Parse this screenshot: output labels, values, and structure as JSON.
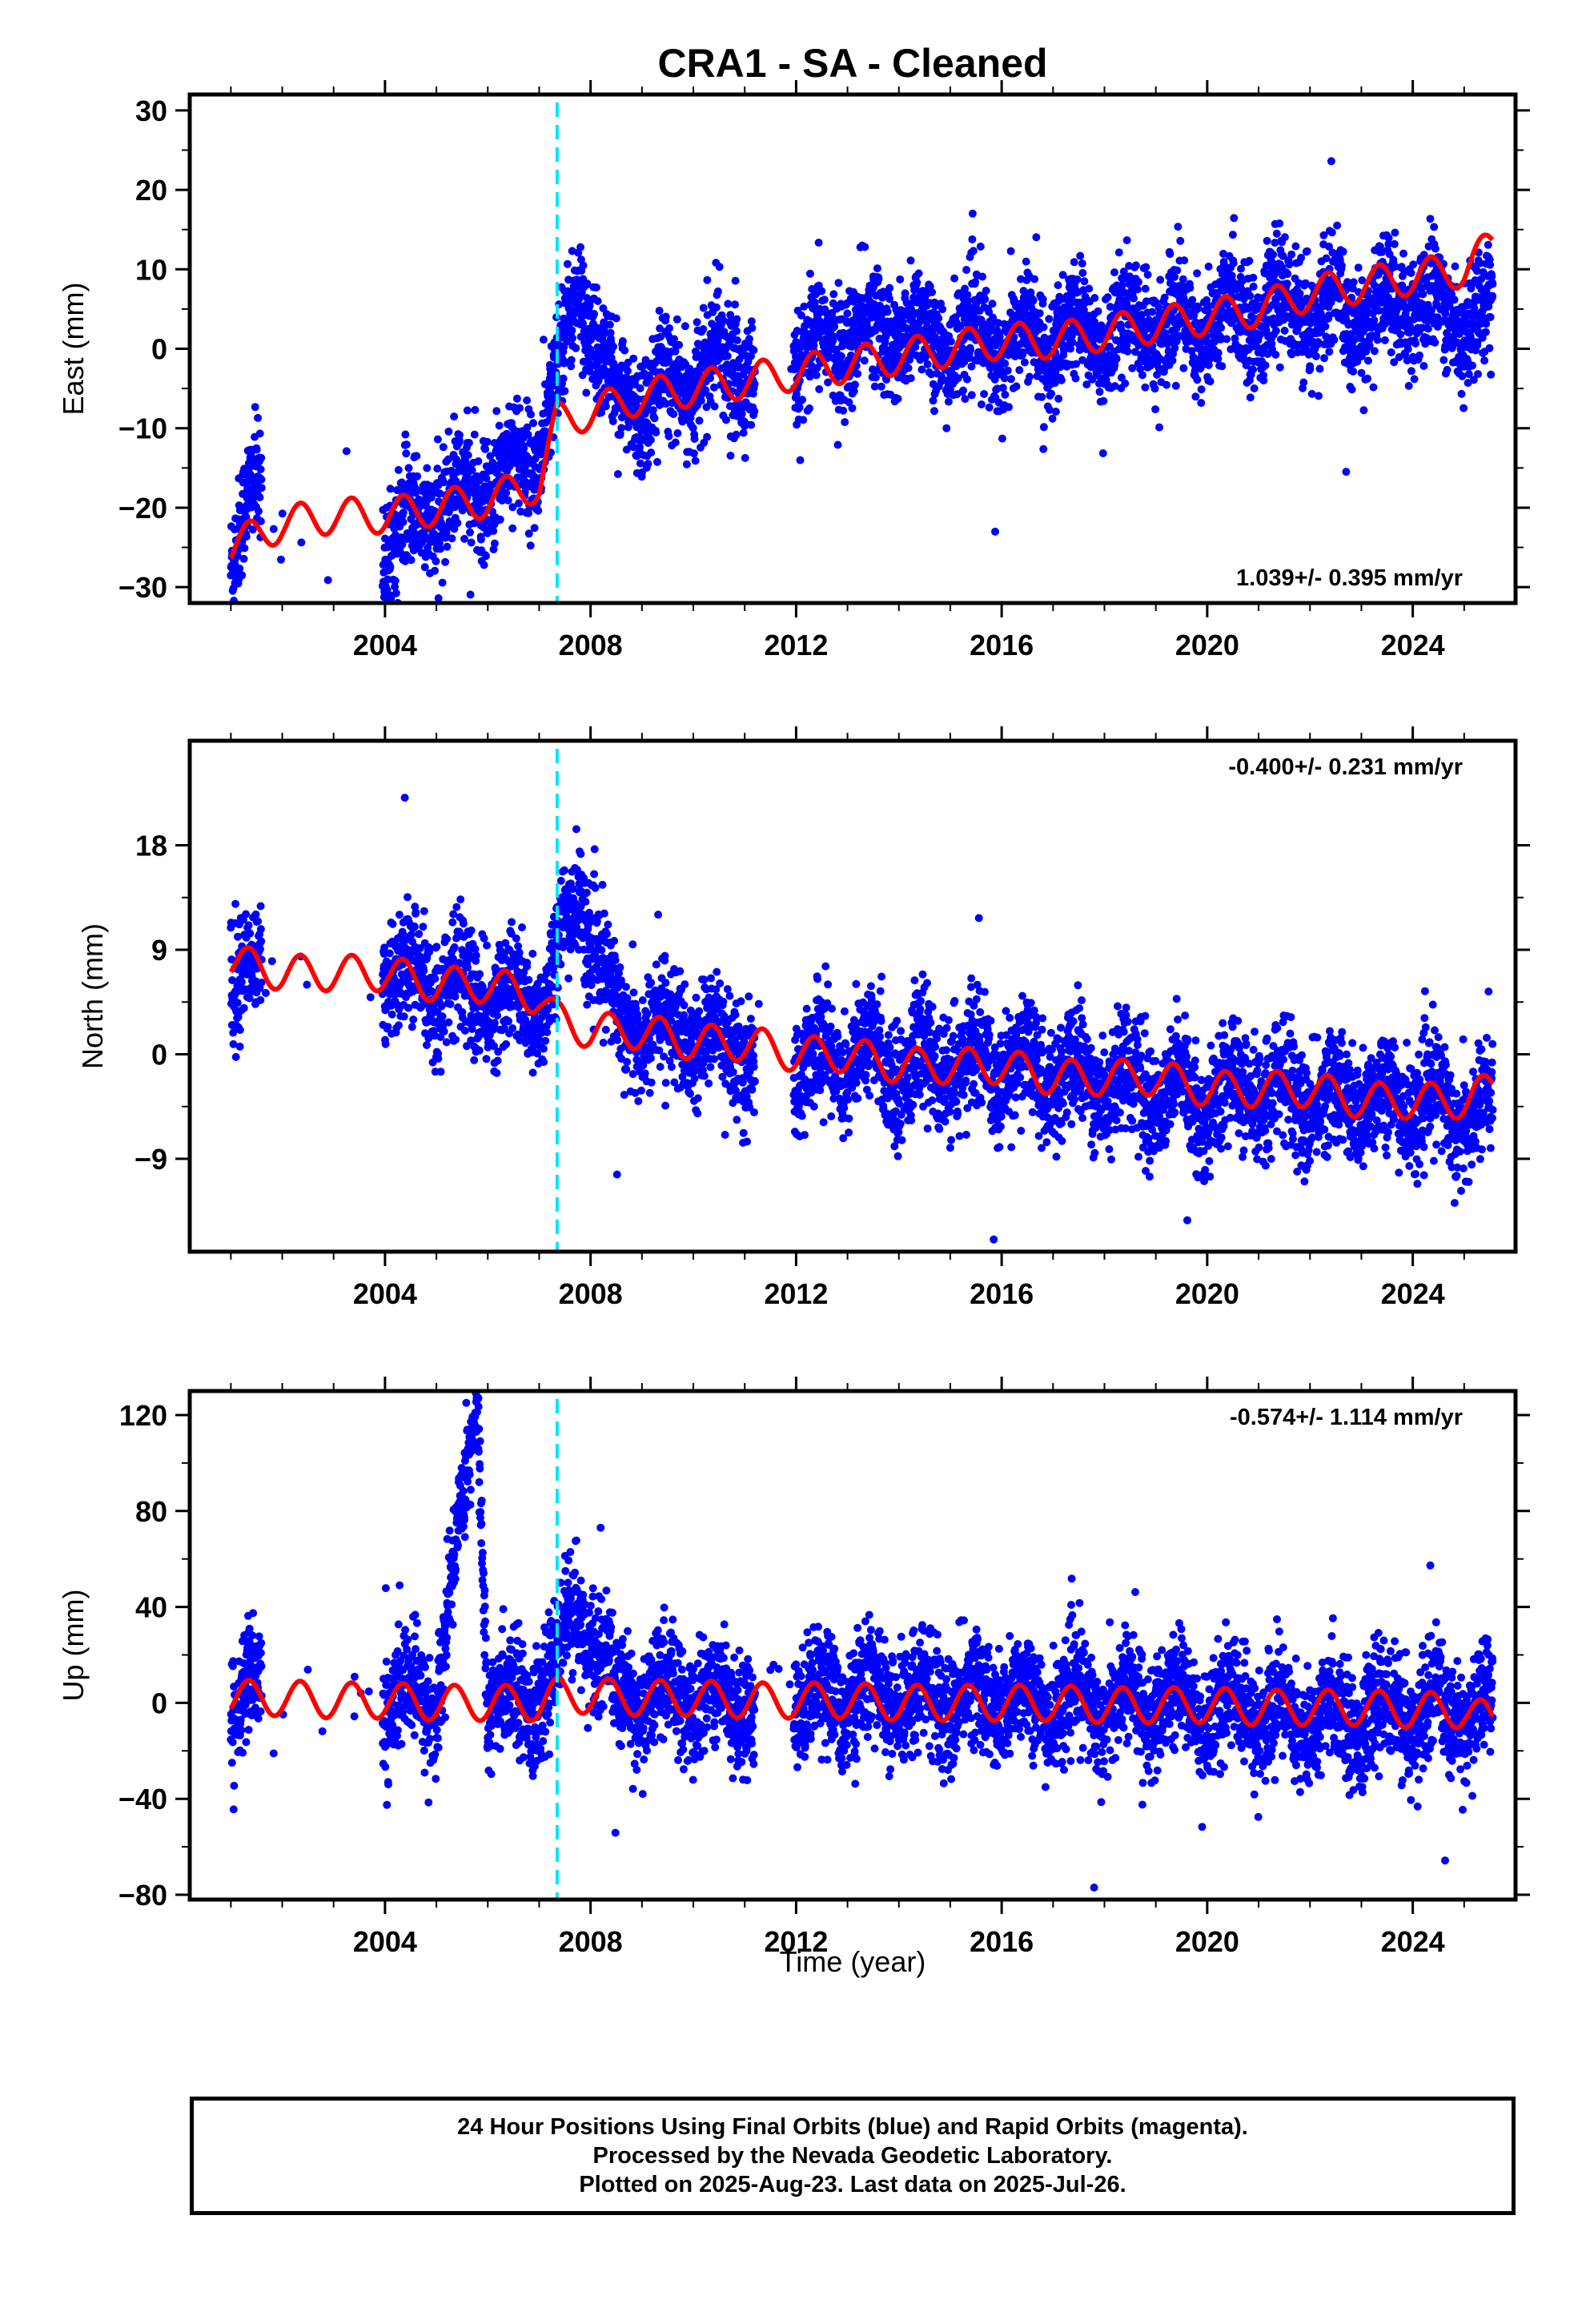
{
  "title": "CRA1  - SA - Cleaned",
  "xlabel": "Time (year)",
  "colors": {
    "final_orbits": "#0000ff",
    "model_fit": "#ff0000",
    "offset_line": "#00e5ff",
    "frame": "#000000"
  },
  "footer": {
    "line1": "24 Hour Positions Using Final Orbits (blue) and Rapid Orbits (magenta).",
    "line2": "Processed by the Nevada Geodetic Laboratory.",
    "line3": "Plotted on 2025-Aug-23. Last data on 2025-Jul-26."
  },
  "chart_data": [
    {
      "type": "scatter",
      "ylabel": "East (mm)",
      "rate": "1.039+/- 0.395 mm/yr",
      "rate_position": "bottom-right",
      "xlim": [
        2000.2,
        2026.0
      ],
      "ylim": [
        -32,
        32
      ],
      "xticks": [
        2004,
        2008,
        2012,
        2016,
        2020,
        2024
      ],
      "xtick_labels": [
        "2004",
        "2008",
        "2012",
        "2016",
        "2020",
        "2024"
      ],
      "yticks": [
        -30,
        -20,
        -10,
        0,
        10,
        20,
        30
      ],
      "ytick_labels": [
        "−30",
        "−20",
        "−10",
        "0",
        "10",
        "20",
        "30"
      ],
      "offset_epoch": 2007.35,
      "series": [
        {
          "style": "points",
          "x": [
            2001.0,
            2001.4,
            2004.0,
            2004.5,
            2005.0,
            2005.5,
            2006.0,
            2006.5,
            2007.0,
            2007.8,
            2008.5,
            2009.5,
            2010.5,
            2012.0,
            2013.0,
            2014.0,
            2015.0,
            2016.0,
            2017.0,
            2018.0,
            2019.0,
            2020.0,
            2021.0,
            2022.0,
            2023.0,
            2024.0,
            2025.0
          ],
          "y": [
            -25,
            -19,
            -25,
            -22,
            -20,
            -19,
            -17,
            -15,
            -13,
            8,
            -7,
            -5,
            -2,
            -2,
            2,
            2,
            1,
            1,
            1,
            2,
            3,
            3,
            5,
            5,
            4,
            6,
            4
          ]
        },
        {
          "style": "line",
          "x": [
            2001.0,
            2002.0,
            2003.0,
            2004.0,
            2005.0,
            2006.0,
            2007.0,
            2007.35,
            2008.0,
            2009.0,
            2010.0,
            2011.0,
            2012.0,
            2013.0,
            2014.0,
            2015.0,
            2016.0,
            2017.0,
            2018.0,
            2019.0,
            2020.0,
            2021.0,
            2022.0,
            2023.0,
            2024.0,
            2025.0,
            2025.55
          ],
          "y": [
            -25,
            -22,
            -21,
            -21,
            -20,
            -19,
            -17,
            -9,
            -8,
            -6,
            -5,
            -4,
            -3,
            -2,
            -1,
            0,
            1,
            1,
            2,
            3,
            4,
            5,
            7,
            8,
            9,
            10,
            13
          ]
        }
      ]
    },
    {
      "type": "scatter",
      "ylabel": "North (mm)",
      "rate": "-0.400+/- 0.231 mm/yr",
      "rate_position": "top-right",
      "xlim": [
        2000.2,
        2026.0
      ],
      "ylim": [
        -17,
        27
      ],
      "xticks": [
        2004,
        2008,
        2012,
        2016,
        2020,
        2024
      ],
      "xtick_labels": [
        "2004",
        "2008",
        "2012",
        "2016",
        "2020",
        "2024"
      ],
      "yticks": [
        -9,
        0,
        9,
        18
      ],
      "ytick_labels": [
        "−9",
        "0",
        "9",
        "18"
      ],
      "offset_epoch": 2007.35,
      "series": [
        {
          "style": "points",
          "x": [
            2001.0,
            2004.0,
            2005.0,
            2006.0,
            2007.0,
            2007.8,
            2008.5,
            2009.5,
            2010.5,
            2012.0,
            2013.0,
            2014.0,
            2015.0,
            2016.0,
            2017.0,
            2018.0,
            2019.0,
            2020.0,
            2021.0,
            2022.0,
            2023.0,
            2024.0,
            2025.0
          ],
          "y": [
            7,
            7,
            6,
            5,
            4,
            14,
            3,
            2,
            1,
            -1,
            0,
            -1,
            -1,
            -1,
            -2,
            -2,
            -3,
            -4,
            -3,
            -4,
            -4,
            -4,
            -5
          ]
        },
        {
          "style": "line",
          "x": [
            2001.0,
            2002.0,
            2003.0,
            2004.0,
            2005.0,
            2006.0,
            2007.0,
            2007.35,
            2008.0,
            2009.0,
            2010.0,
            2011.0,
            2012.0,
            2013.0,
            2014.0,
            2015.0,
            2016.0,
            2017.0,
            2018.0,
            2019.0,
            2020.0,
            2021.0,
            2022.0,
            2023.0,
            2024.0,
            2025.0,
            2025.55
          ],
          "y": [
            8,
            7,
            7,
            7,
            6,
            6,
            5,
            3,
            2,
            2,
            1,
            1,
            0,
            0,
            -1,
            -1,
            -1,
            -2,
            -2,
            -2,
            -3,
            -3,
            -3,
            -4,
            -4,
            -4,
            -3
          ]
        }
      ]
    },
    {
      "type": "scatter",
      "ylabel": "Up (mm)",
      "rate": "-0.574+/- 1.114 mm/yr",
      "rate_position": "top-right",
      "xlim": [
        2000.2,
        2026.0
      ],
      "ylim": [
        -82,
        130
      ],
      "xticks": [
        2004,
        2008,
        2012,
        2016,
        2020,
        2024
      ],
      "xtick_labels": [
        "2004",
        "2008",
        "2012",
        "2016",
        "2020",
        "2024"
      ],
      "yticks": [
        -80,
        -40,
        0,
        40,
        80,
        120
      ],
      "ytick_labels": [
        "−80",
        "−40",
        "0",
        "40",
        "80",
        "120"
      ],
      "offset_epoch": 2007.35,
      "series": [
        {
          "style": "points",
          "x": [
            2001.0,
            2004.0,
            2005.0,
            2005.8,
            2006.0,
            2007.0,
            2007.8,
            2008.5,
            2009.5,
            2010.5,
            2012.0,
            2013.0,
            2014.0,
            2015.0,
            2016.0,
            2017.0,
            2018.0,
            2019.0,
            2020.0,
            2021.0,
            2022.0,
            2023.0,
            2024.0,
            2025.0
          ],
          "y": [
            2,
            0,
            2,
            127,
            0,
            2,
            40,
            2,
            3,
            2,
            2,
            3,
            2,
            2,
            1,
            0,
            0,
            -1,
            -2,
            -3,
            -8,
            -5,
            -4,
            -4
          ]
        },
        {
          "style": "line",
          "x": [
            2001.0,
            2002.0,
            2003.0,
            2004.0,
            2005.0,
            2006.0,
            2007.0,
            2007.35,
            2008.0,
            2009.0,
            2010.0,
            2011.0,
            2012.0,
            2013.0,
            2014.0,
            2015.0,
            2016.0,
            2017.0,
            2018.0,
            2019.0,
            2020.0,
            2021.0,
            2022.0,
            2023.0,
            2024.0,
            2025.0,
            2025.55
          ],
          "y": [
            2,
            2,
            1,
            1,
            0,
            0,
            0,
            3,
            3,
            2,
            2,
            1,
            1,
            1,
            0,
            0,
            0,
            0,
            -1,
            -1,
            -1,
            -2,
            -2,
            -2,
            -3,
            -3,
            -8
          ]
        }
      ]
    }
  ]
}
